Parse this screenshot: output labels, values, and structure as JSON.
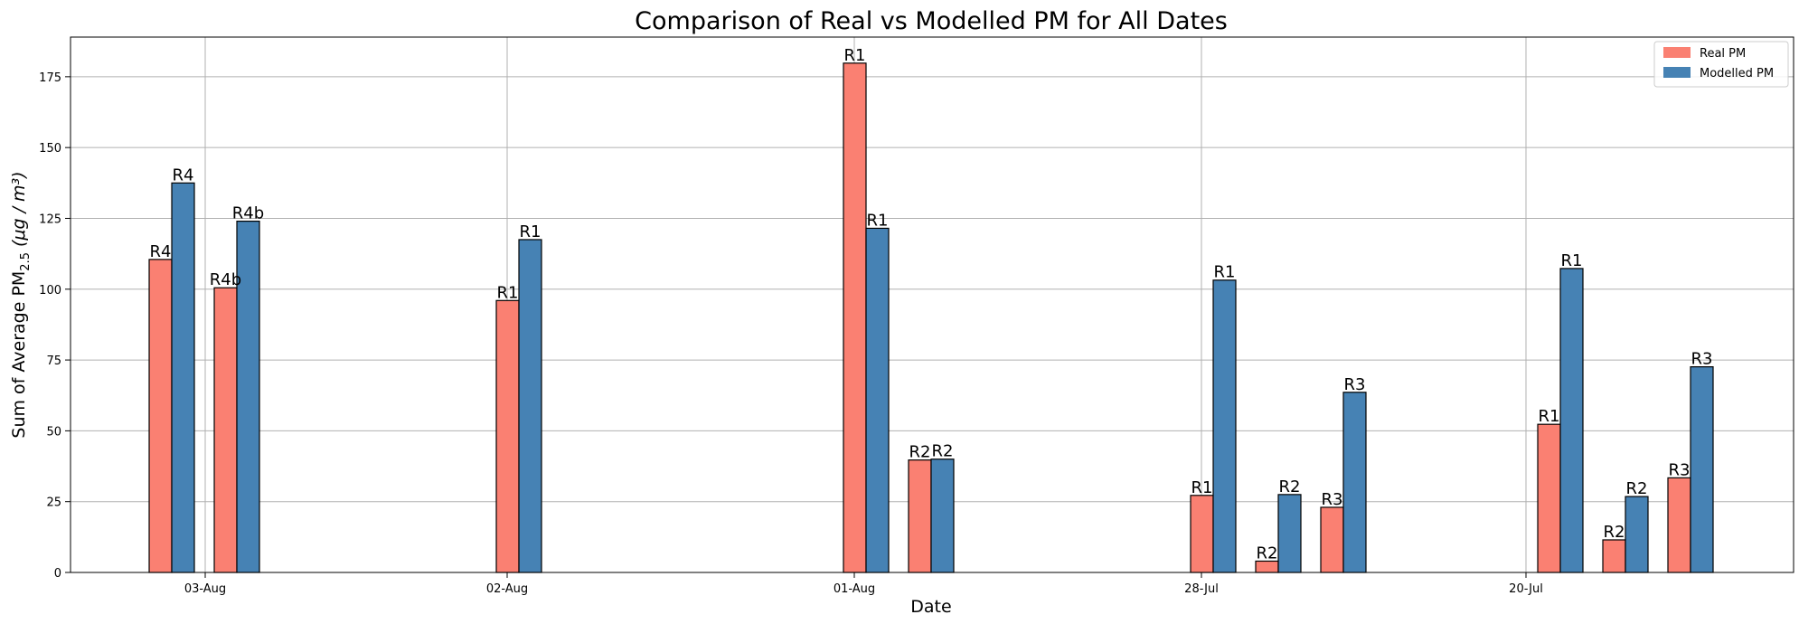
{
  "chart_data": {
    "type": "bar",
    "title": "Comparison of Real vs Modelled PM for All Dates",
    "xlabel": "Date",
    "ylabel": "Sum of Average PM",
    "ylabel_sub": "2.5",
    "ylabel_units": "(μg / m³)",
    "ylim": [
      0,
      189
    ],
    "yticks": [
      "0",
      "25",
      "50",
      "75",
      "100",
      "125",
      "150",
      "175"
    ],
    "grid": true,
    "legend_position": "top-right",
    "colors": {
      "real": "#fa8072",
      "modelled": "#4682b4"
    },
    "categories": [
      "03-Aug",
      "02-Aug",
      "01-Aug",
      "28-Jul",
      "20-Jul"
    ],
    "series": [
      {
        "name": "Real PM",
        "key": "real"
      },
      {
        "name": "Modelled PM",
        "key": "modelled"
      }
    ],
    "groups": [
      {
        "date": "03-Aug",
        "label": "R4",
        "real": 110.5,
        "modelled": 137.5
      },
      {
        "date": "03-Aug",
        "label": "R4b",
        "real": 100.5,
        "modelled": 124
      },
      {
        "date": "02-Aug",
        "label": "R1",
        "real": 96,
        "modelled": 117.5
      },
      {
        "date": "01-Aug",
        "label": "R1",
        "real": 179.8,
        "modelled": 121.5
      },
      {
        "date": "01-Aug",
        "label": "R2",
        "real": 39.7,
        "modelled": 40
      },
      {
        "date": "28-Jul",
        "label": "R1",
        "real": 27.2,
        "modelled": 103.2
      },
      {
        "date": "28-Jul",
        "label": "R2",
        "real": 4,
        "modelled": 27.5
      },
      {
        "date": "28-Jul",
        "label": "R3",
        "real": 23,
        "modelled": 63.6
      },
      {
        "date": "20-Jul",
        "label": "R1",
        "real": 52.3,
        "modelled": 107.3
      },
      {
        "date": "20-Jul",
        "label": "R2",
        "real": 11.5,
        "modelled": 26.8
      },
      {
        "date": "20-Jul",
        "label": "R3",
        "real": 33.4,
        "modelled": 72.6
      }
    ]
  }
}
